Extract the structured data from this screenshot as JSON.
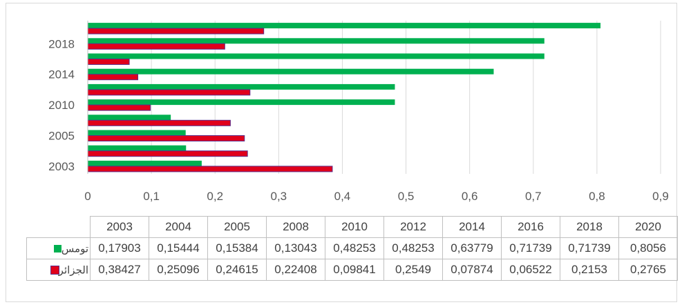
{
  "chart_data": {
    "type": "bar",
    "orientation": "horizontal",
    "categories": [
      "2003",
      "2004",
      "2005",
      "2008",
      "2010",
      "2012",
      "2014",
      "2016",
      "2018",
      "2020"
    ],
    "category_tick_labels": [
      "2003",
      "2005",
      "2010",
      "2014",
      "2018"
    ],
    "series": [
      {
        "name": "تومس",
        "color": "#00b050",
        "values": [
          0.17903,
          0.15444,
          0.15384,
          0.13043,
          0.48253,
          0.48253,
          0.63779,
          0.71739,
          0.71739,
          0.8056
        ],
        "labels": [
          "0,17903",
          "0,15444",
          "0,15384",
          "0,13043",
          "0,48253",
          "0,48253",
          "0,63779",
          "0,71739",
          "0,71739",
          "0,8056"
        ]
      },
      {
        "name": "الجزائر",
        "color": "#e0001b",
        "border": "#5b2c8a",
        "values": [
          0.38427,
          0.25096,
          0.24615,
          0.22408,
          0.09841,
          0.2549,
          0.07874,
          0.06522,
          0.2153,
          0.2765
        ],
        "labels": [
          "0,38427",
          "0,25096",
          "0,24615",
          "0,22408",
          "0,09841",
          "0,2549",
          "0,07874",
          "0,06522",
          "0,2153",
          "0,2765"
        ]
      }
    ],
    "xlim": [
      0,
      0.9
    ],
    "x_ticks": [
      0,
      0.1,
      0.2,
      0.3,
      0.4,
      0.5,
      0.6,
      0.7,
      0.8,
      0.9
    ],
    "x_tick_labels": [
      "0",
      "0,1",
      "0,2",
      "0,3",
      "0,4",
      "0,5",
      "0,6",
      "0,7",
      "0,8",
      "0,9"
    ],
    "grid": true,
    "legend": "data-table",
    "title": "",
    "xlabel": "",
    "ylabel": ""
  }
}
